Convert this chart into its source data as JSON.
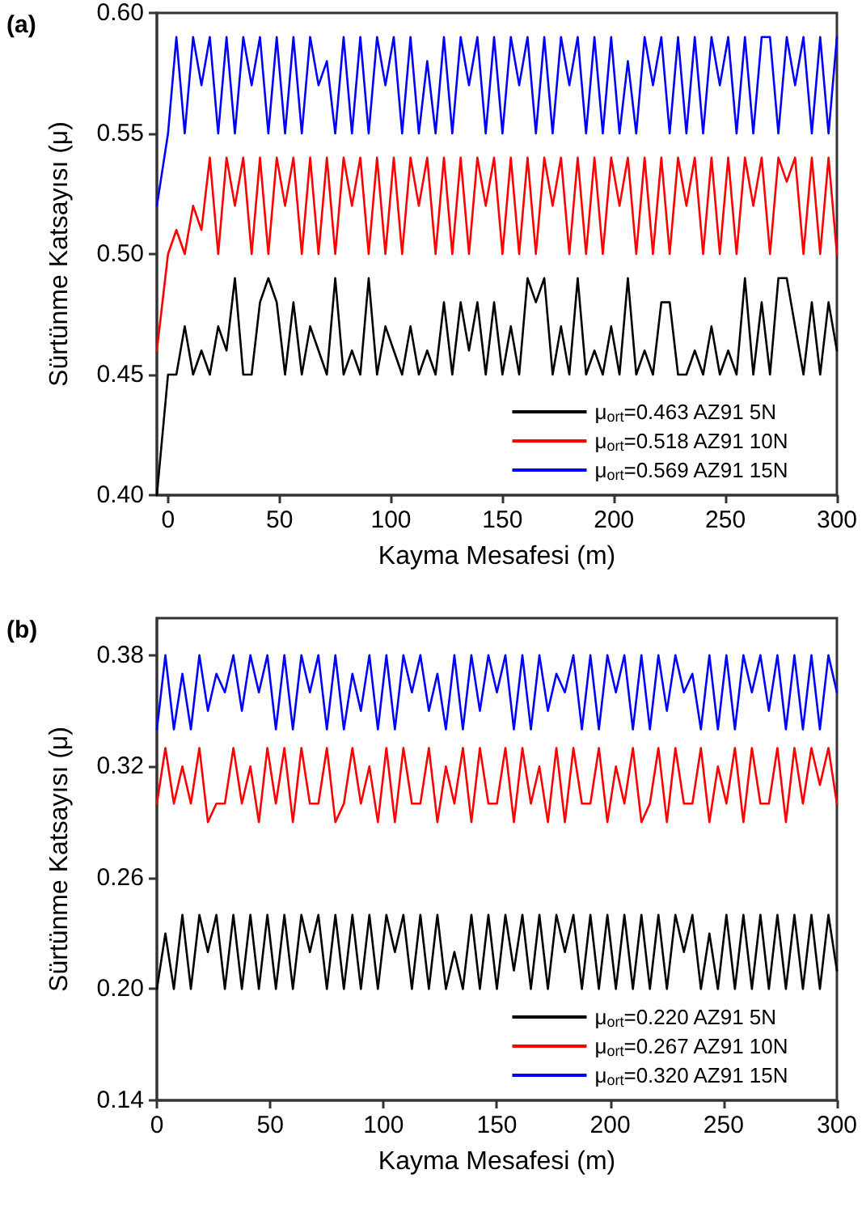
{
  "chart_data": [
    {
      "type": "line",
      "annotations": [
        "(a)"
      ],
      "xlabel": "Kayma Mesafesi (m)",
      "ylabel": "Sürtünme Katsayısı (μ)",
      "xlim": [
        -5,
        300
      ],
      "xticks": [
        0,
        50,
        100,
        150,
        200,
        250,
        300
      ],
      "ylim": [
        0.4,
        0.6
      ],
      "yticks": [
        {
          "value": 0.4,
          "label": "0.40"
        },
        0.45,
        {
          "value": 0.5,
          "label": "0.50"
        },
        0.55,
        {
          "value": 0.6,
          "label": "0.60"
        }
      ],
      "grid": false,
      "legend": "bottom right",
      "line_style": "solid",
      "x": [
        -5,
        0,
        3.75,
        7.5,
        11.25,
        15,
        18.75,
        22.5,
        26.25,
        30,
        33.75,
        37.5,
        41.25,
        45,
        48.75,
        52.5,
        56.25,
        60,
        63.75,
        67.5,
        71.25,
        75,
        78.75,
        82.5,
        86.25,
        90,
        93.75,
        97.5,
        101.25,
        105,
        108.75,
        112.5,
        116.25,
        120,
        123.75,
        127.5,
        131.25,
        135,
        138.75,
        142.5,
        146.25,
        150,
        153.75,
        157.5,
        161.25,
        165,
        168.75,
        172.5,
        176.25,
        180,
        183.75,
        187.5,
        191.25,
        195,
        198.75,
        202.5,
        206.25,
        210,
        213.75,
        217.5,
        221.25,
        225,
        228.75,
        232.5,
        236.25,
        240,
        243.75,
        247.5,
        251.25,
        255,
        258.75,
        262.5,
        266.25,
        270,
        273.75,
        277.5,
        281.25,
        285,
        288.75,
        292.5,
        296.25,
        300
      ],
      "series": [
        {
          "name": "μ$_{ort}$=0.463 AZ91 5N",
          "color": "#000000",
          "values": [
            0.4,
            0.45,
            0.45,
            0.47,
            0.45,
            0.46,
            0.45,
            0.47,
            0.46,
            0.49,
            0.45,
            0.45,
            0.48,
            0.49,
            0.48,
            0.45,
            0.48,
            0.45,
            0.47,
            0.46,
            0.45,
            0.49,
            0.45,
            0.46,
            0.45,
            0.49,
            0.45,
            0.47,
            0.46,
            0.45,
            0.47,
            0.45,
            0.46,
            0.45,
            0.48,
            0.45,
            0.48,
            0.46,
            0.48,
            0.45,
            0.48,
            0.45,
            0.47,
            0.45,
            0.49,
            0.48,
            0.49,
            0.45,
            0.47,
            0.45,
            0.49,
            0.45,
            0.46,
            0.45,
            0.47,
            0.45,
            0.49,
            0.45,
            0.46,
            0.45,
            0.48,
            0.48,
            0.45,
            0.45,
            0.46,
            0.45,
            0.47,
            0.45,
            0.46,
            0.45,
            0.49,
            0.45,
            0.48,
            0.45,
            0.49,
            0.49,
            0.47,
            0.45,
            0.48,
            0.45,
            0.48,
            0.46
          ]
        },
        {
          "name": "μ$_{ort}$=0.518 AZ91 10N",
          "color": "#ff0000",
          "values": [
            0.46,
            0.5,
            0.51,
            0.5,
            0.52,
            0.51,
            0.54,
            0.5,
            0.54,
            0.52,
            0.54,
            0.5,
            0.54,
            0.5,
            0.54,
            0.52,
            0.54,
            0.5,
            0.54,
            0.5,
            0.54,
            0.5,
            0.54,
            0.52,
            0.54,
            0.5,
            0.54,
            0.5,
            0.54,
            0.5,
            0.54,
            0.52,
            0.54,
            0.5,
            0.54,
            0.5,
            0.54,
            0.5,
            0.54,
            0.52,
            0.54,
            0.5,
            0.54,
            0.5,
            0.54,
            0.5,
            0.54,
            0.52,
            0.54,
            0.5,
            0.54,
            0.5,
            0.54,
            0.5,
            0.54,
            0.52,
            0.54,
            0.5,
            0.54,
            0.5,
            0.54,
            0.5,
            0.54,
            0.52,
            0.54,
            0.5,
            0.54,
            0.5,
            0.54,
            0.5,
            0.54,
            0.52,
            0.54,
            0.5,
            0.54,
            0.53,
            0.54,
            0.5,
            0.54,
            0.5,
            0.54,
            0.5
          ]
        },
        {
          "name": "μ$_{ort}$=0.569 AZ91 15N",
          "color": "#0000ff",
          "values": [
            0.52,
            0.55,
            0.59,
            0.55,
            0.59,
            0.57,
            0.59,
            0.55,
            0.59,
            0.55,
            0.59,
            0.57,
            0.59,
            0.55,
            0.59,
            0.55,
            0.59,
            0.55,
            0.59,
            0.57,
            0.58,
            0.55,
            0.59,
            0.55,
            0.59,
            0.55,
            0.59,
            0.57,
            0.59,
            0.55,
            0.59,
            0.55,
            0.58,
            0.55,
            0.59,
            0.55,
            0.59,
            0.57,
            0.59,
            0.55,
            0.59,
            0.55,
            0.59,
            0.57,
            0.59,
            0.55,
            0.59,
            0.55,
            0.59,
            0.57,
            0.59,
            0.55,
            0.59,
            0.55,
            0.59,
            0.55,
            0.58,
            0.55,
            0.59,
            0.57,
            0.59,
            0.55,
            0.59,
            0.55,
            0.59,
            0.55,
            0.59,
            0.57,
            0.59,
            0.55,
            0.59,
            0.55,
            0.59,
            0.59,
            0.55,
            0.59,
            0.57,
            0.59,
            0.55,
            0.59,
            0.55,
            0.59
          ]
        }
      ]
    },
    {
      "type": "line",
      "annotations": [
        "(b)"
      ],
      "xlabel": "Kayma Mesafesi (m)",
      "ylabel": "Sürtünme Katsayısı (μ)",
      "xlim": [
        0,
        300
      ],
      "xticks": [
        0,
        50,
        100,
        150,
        200,
        250,
        300
      ],
      "ylim": [
        0.14,
        0.4
      ],
      "yticks": [
        0.14,
        {
          "value": 0.2,
          "label": "0.20"
        },
        0.26,
        0.32,
        0.38
      ],
      "grid": false,
      "legend": "bottom right",
      "line_style": "solid",
      "x": [
        0,
        3.75,
        7.5,
        11.25,
        15,
        18.75,
        22.5,
        26.25,
        30,
        33.75,
        37.5,
        41.25,
        45,
        48.75,
        52.5,
        56.25,
        60,
        63.75,
        67.5,
        71.25,
        75,
        78.75,
        82.5,
        86.25,
        90,
        93.75,
        97.5,
        101.25,
        105,
        108.75,
        112.5,
        116.25,
        120,
        123.75,
        127.5,
        131.25,
        135,
        138.75,
        142.5,
        146.25,
        150,
        153.75,
        157.5,
        161.25,
        165,
        168.75,
        172.5,
        176.25,
        180,
        183.75,
        187.5,
        191.25,
        195,
        198.75,
        202.5,
        206.25,
        210,
        213.75,
        217.5,
        221.25,
        225,
        228.75,
        232.5,
        236.25,
        240,
        243.75,
        247.5,
        251.25,
        255,
        258.75,
        262.5,
        266.25,
        270,
        273.75,
        277.5,
        281.25,
        285,
        288.75,
        292.5,
        296.25,
        300
      ],
      "series": [
        {
          "name": "μ$_{ort}$=0.220 AZ91 5N",
          "color": "#000000",
          "values": [
            0.2,
            0.23,
            0.2,
            0.24,
            0.2,
            0.24,
            0.22,
            0.24,
            0.2,
            0.24,
            0.2,
            0.24,
            0.2,
            0.24,
            0.2,
            0.24,
            0.2,
            0.24,
            0.22,
            0.24,
            0.2,
            0.24,
            0.2,
            0.24,
            0.2,
            0.24,
            0.2,
            0.24,
            0.22,
            0.24,
            0.2,
            0.24,
            0.2,
            0.24,
            0.2,
            0.22,
            0.2,
            0.24,
            0.2,
            0.24,
            0.2,
            0.24,
            0.21,
            0.24,
            0.2,
            0.24,
            0.2,
            0.24,
            0.22,
            0.24,
            0.2,
            0.24,
            0.2,
            0.24,
            0.2,
            0.24,
            0.2,
            0.24,
            0.2,
            0.24,
            0.2,
            0.24,
            0.22,
            0.24,
            0.2,
            0.23,
            0.2,
            0.24,
            0.2,
            0.24,
            0.2,
            0.24,
            0.2,
            0.24,
            0.2,
            0.24,
            0.2,
            0.24,
            0.2,
            0.24,
            0.21
          ]
        },
        {
          "name": "μ$_{ort}$=0.267 AZ91 10N",
          "color": "#ff0000",
          "values": [
            0.3,
            0.33,
            0.3,
            0.32,
            0.3,
            0.33,
            0.29,
            0.3,
            0.3,
            0.33,
            0.3,
            0.32,
            0.29,
            0.33,
            0.3,
            0.33,
            0.29,
            0.33,
            0.3,
            0.3,
            0.33,
            0.29,
            0.3,
            0.33,
            0.3,
            0.32,
            0.29,
            0.33,
            0.29,
            0.33,
            0.3,
            0.3,
            0.33,
            0.29,
            0.32,
            0.3,
            0.33,
            0.29,
            0.33,
            0.3,
            0.3,
            0.33,
            0.29,
            0.33,
            0.3,
            0.32,
            0.29,
            0.33,
            0.29,
            0.33,
            0.3,
            0.3,
            0.33,
            0.29,
            0.32,
            0.3,
            0.33,
            0.29,
            0.3,
            0.33,
            0.29,
            0.33,
            0.3,
            0.3,
            0.33,
            0.29,
            0.32,
            0.3,
            0.33,
            0.29,
            0.33,
            0.3,
            0.3,
            0.33,
            0.29,
            0.33,
            0.3,
            0.33,
            0.31,
            0.33,
            0.3
          ]
        },
        {
          "name": "μ$_{ort}$=0.320 AZ91 15N",
          "color": "#0000ff",
          "values": [
            0.34,
            0.38,
            0.34,
            0.37,
            0.34,
            0.38,
            0.35,
            0.37,
            0.36,
            0.38,
            0.35,
            0.38,
            0.36,
            0.38,
            0.34,
            0.38,
            0.34,
            0.38,
            0.36,
            0.38,
            0.34,
            0.38,
            0.34,
            0.37,
            0.35,
            0.38,
            0.34,
            0.38,
            0.34,
            0.38,
            0.36,
            0.38,
            0.35,
            0.37,
            0.34,
            0.38,
            0.34,
            0.38,
            0.35,
            0.38,
            0.36,
            0.38,
            0.34,
            0.38,
            0.34,
            0.38,
            0.35,
            0.37,
            0.36,
            0.38,
            0.34,
            0.38,
            0.34,
            0.38,
            0.36,
            0.38,
            0.34,
            0.38,
            0.34,
            0.38,
            0.35,
            0.38,
            0.36,
            0.37,
            0.34,
            0.38,
            0.34,
            0.38,
            0.34,
            0.38,
            0.36,
            0.38,
            0.35,
            0.38,
            0.34,
            0.38,
            0.34,
            0.38,
            0.34,
            0.38,
            0.36
          ]
        }
      ]
    }
  ]
}
